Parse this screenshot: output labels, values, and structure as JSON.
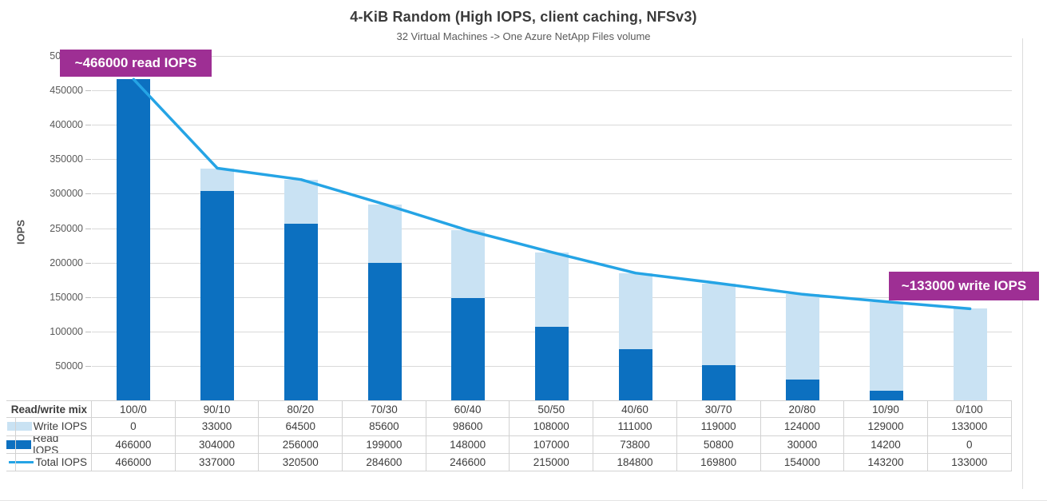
{
  "title": "4-KiB Random (High IOPS, client caching, NFSv3)",
  "subtitle": "32 Virtual Machines -> One Azure NetApp Files volume",
  "colors": {
    "read_bar": "#0c70c0",
    "write_bar": "#c9e2f3",
    "total_line": "#25a4e5",
    "annotation_bg": "#9e2f94",
    "grid": "#d9d9d9",
    "axis_text": "#595959"
  },
  "y_axis": {
    "label": "IOPS",
    "min": 0,
    "max": 500000,
    "tick_step": 50000
  },
  "annotations": [
    {
      "text": "~466000 read IOPS"
    },
    {
      "text": "~133000 write IOPS"
    }
  ],
  "table": {
    "corner_label": "Read/write mix"
  },
  "chart_data": {
    "type": "bar",
    "subtype": "stacked-bars-with-line-overlay",
    "title": "4-KiB Random (High IOPS, client caching, NFSv3)",
    "subtitle": "32 Virtual Machines -> One Azure NetApp Files volume",
    "xlabel": "Read/write mix",
    "ylabel": "IOPS",
    "ylim": [
      0,
      500000
    ],
    "ytick_step": 50000,
    "grid": true,
    "legend_position": "table-left",
    "categories": [
      "100/0",
      "90/10",
      "80/20",
      "70/30",
      "60/40",
      "50/50",
      "40/60",
      "30/70",
      "20/80",
      "10/90",
      "0/100"
    ],
    "series": [
      {
        "name": "Write IOPS",
        "type": "bar",
        "role": "write",
        "color": "#c9e2f3",
        "values": [
          0,
          33000,
          64500,
          85600,
          98600,
          108000,
          111000,
          119000,
          124000,
          129000,
          133000
        ]
      },
      {
        "name": "Read IOPS",
        "type": "bar",
        "role": "read",
        "color": "#0c70c0",
        "values": [
          466000,
          304000,
          256000,
          199000,
          148000,
          107000,
          73800,
          50800,
          30000,
          14200,
          0
        ]
      },
      {
        "name": "Total IOPS",
        "type": "line",
        "role": "total",
        "color": "#25a4e5",
        "values": [
          466000,
          337000,
          320500,
          284600,
          246600,
          215000,
          184800,
          169800,
          154000,
          143200,
          133000
        ]
      }
    ]
  }
}
